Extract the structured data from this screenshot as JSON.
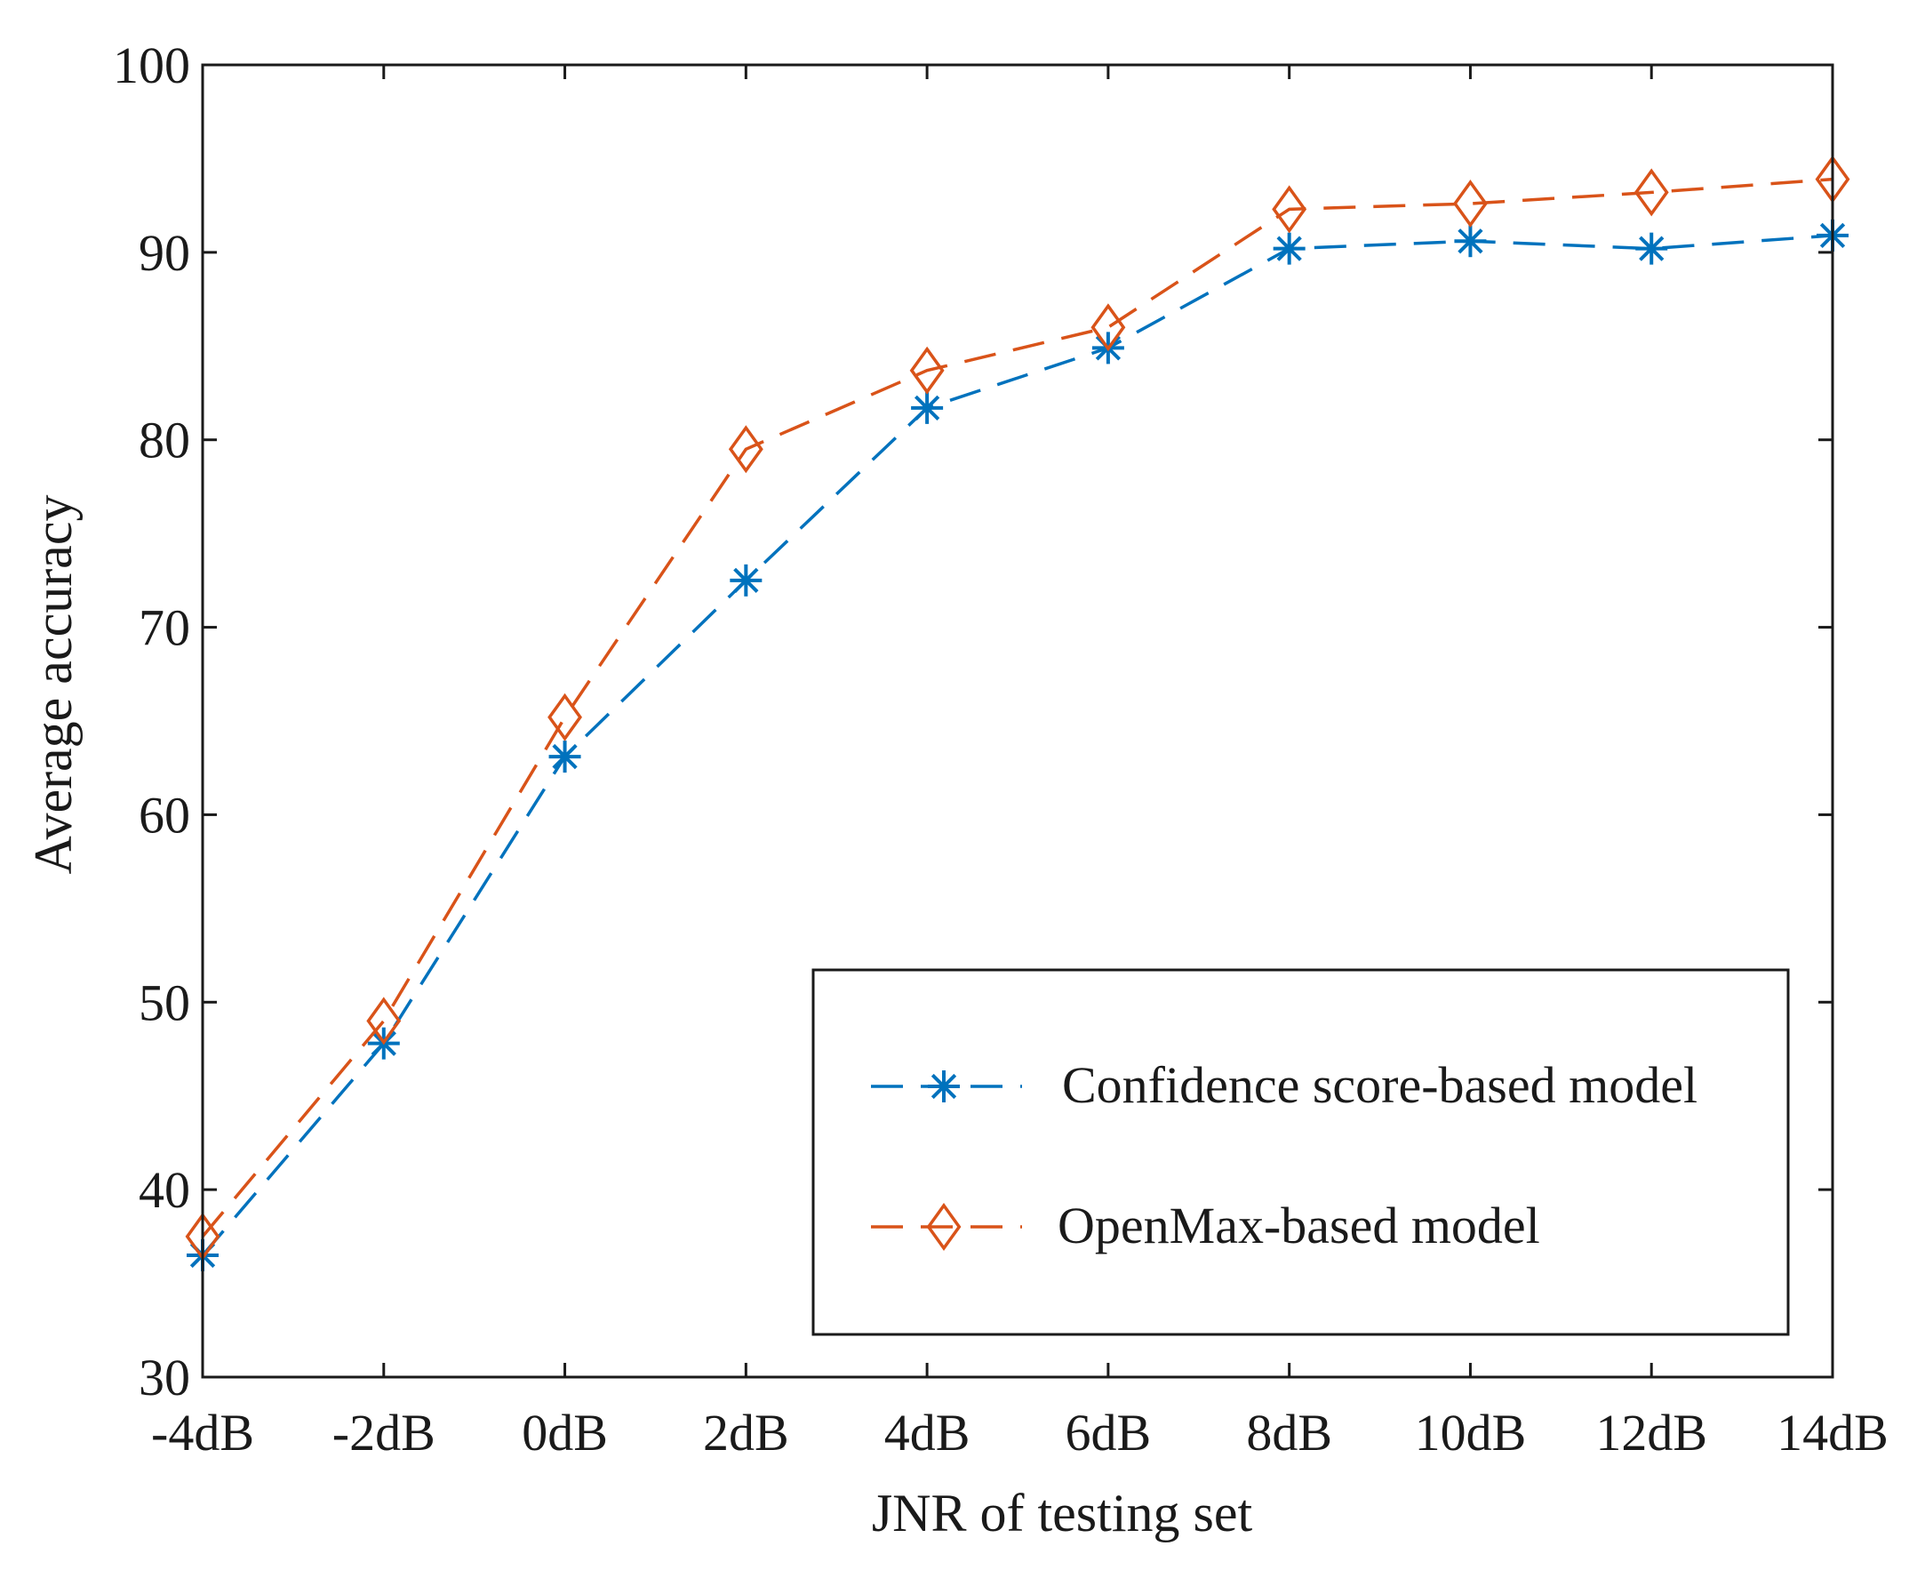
{
  "chart_data": {
    "type": "line",
    "title": "",
    "xlabel": "JNR of testing set",
    "ylabel": "Average accuracy",
    "categories": [
      "-4dB",
      "-2dB",
      "0dB",
      "2dB",
      "4dB",
      "6dB",
      "8dB",
      "10dB",
      "12dB",
      "14dB"
    ],
    "ylim": [
      30,
      100
    ],
    "yticks": [
      30,
      40,
      50,
      60,
      70,
      80,
      90,
      100
    ],
    "grid": false,
    "legend_position": "bottom-right",
    "series": [
      {
        "name": "Confidence score-based model",
        "color": "#0072BD",
        "marker": "asterisk",
        "line_style": "dashed",
        "values": [
          36.5,
          47.8,
          63.1,
          72.5,
          81.7,
          84.9,
          90.2,
          90.6,
          90.2,
          90.9
        ]
      },
      {
        "name": "OpenMax-based model",
        "color": "#D95319",
        "marker": "diamond",
        "line_style": "dashed",
        "values": [
          37.5,
          49.0,
          65.2,
          79.5,
          83.7,
          86.0,
          92.3,
          92.6,
          93.2,
          93.9
        ]
      }
    ]
  }
}
